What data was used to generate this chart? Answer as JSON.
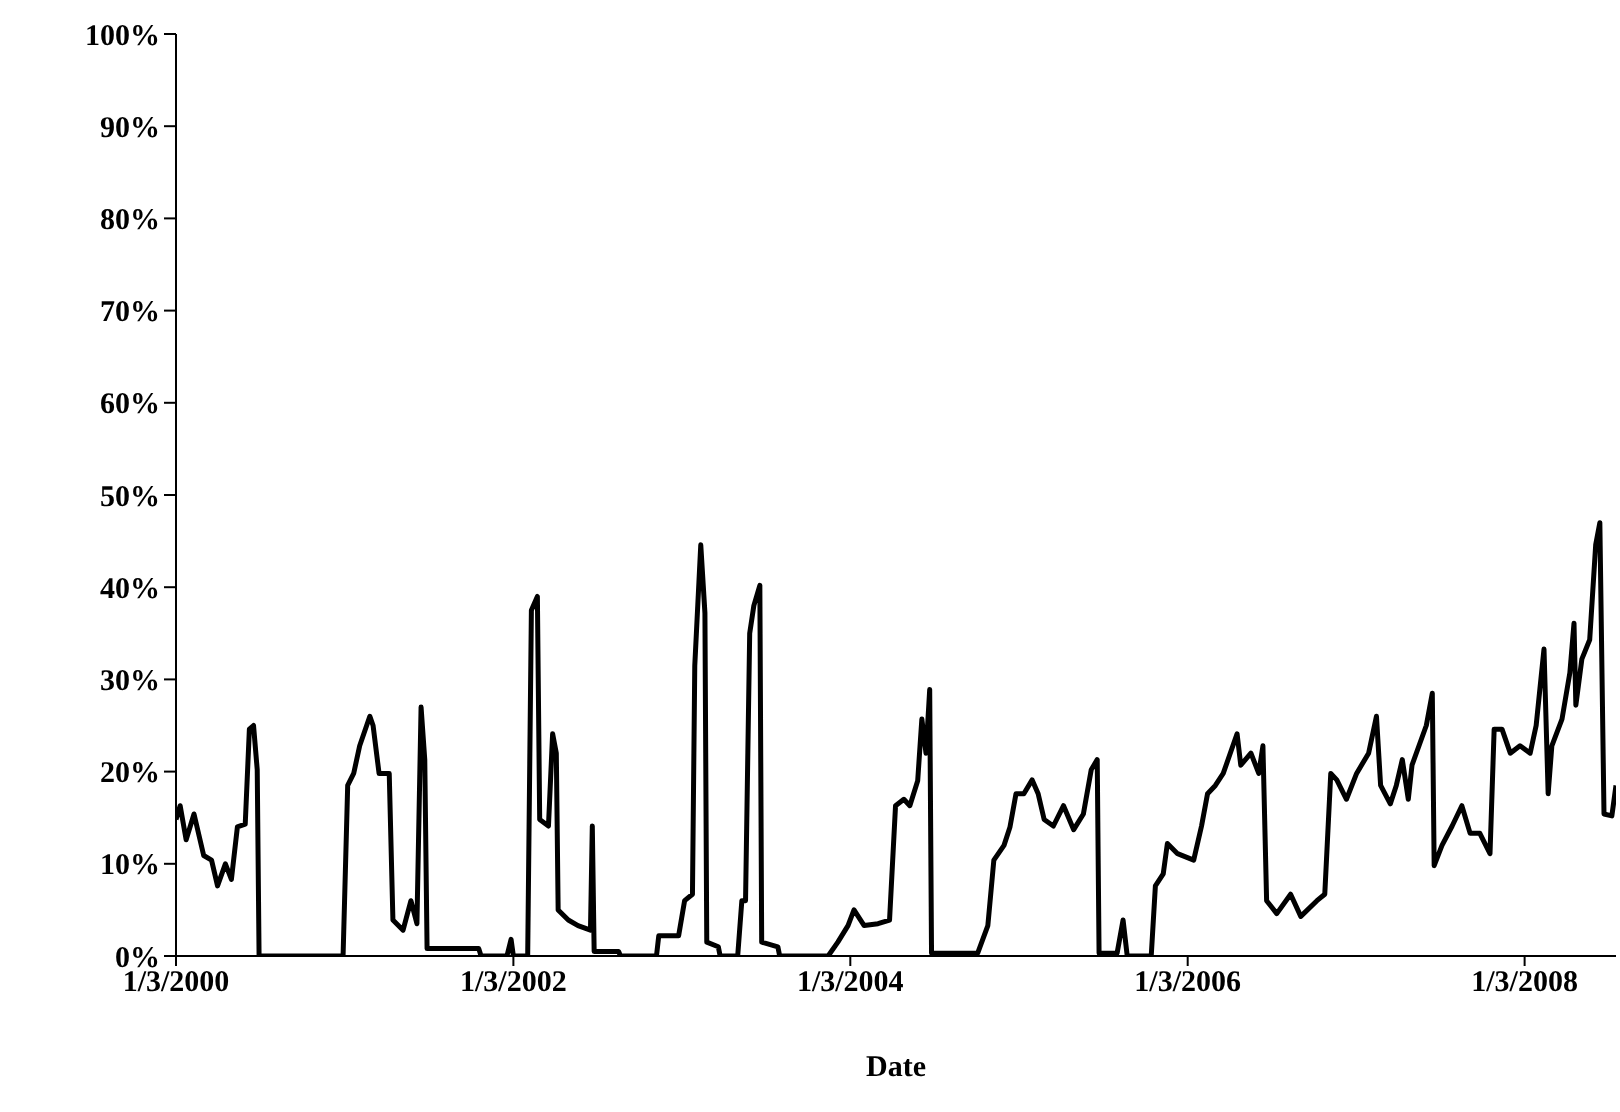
{
  "chart_data": {
    "type": "line",
    "xlabel": "Date",
    "x": [
      "2000-01-03",
      "2000-01-12",
      "2000-01-25",
      "2000-02-11",
      "2000-03-03",
      "2000-03-20",
      "2000-04-02",
      "2000-04-19",
      "2000-05-02",
      "2000-05-15",
      "2000-06-01",
      "2000-06-10",
      "2000-06-19",
      "2000-06-27",
      "2000-07-01",
      "2000-12-30",
      "2001-01-09",
      "2001-01-22",
      "2001-02-04",
      "2001-02-26",
      "2001-03-05",
      "2001-03-18",
      "2001-04-09",
      "2001-04-17",
      "2001-05-09",
      "2001-05-26",
      "2001-06-08",
      "2001-06-17",
      "2001-06-25",
      "2001-06-30",
      "2001-10-20",
      "2001-10-25",
      "2001-12-20",
      "2001-12-29",
      "2002-01-03",
      "2002-02-03",
      "2002-02-11",
      "2002-02-24",
      "2002-03-01",
      "2002-03-20",
      "2002-03-29",
      "2002-04-06",
      "2002-04-10",
      "2002-05-02",
      "2002-05-23",
      "2002-06-19",
      "2002-06-23",
      "2002-06-27",
      "2002-08-19",
      "2002-08-23",
      "2002-11-09",
      "2002-11-14",
      "2002-12-27",
      "2003-01-09",
      "2003-01-26",
      "2003-01-31",
      "2003-02-13",
      "2003-02-22",
      "2003-02-26",
      "2003-03-23",
      "2003-03-27",
      "2003-05-04",
      "2003-05-13",
      "2003-05-21",
      "2003-05-30",
      "2003-06-08",
      "2003-06-21",
      "2003-06-25",
      "2003-07-30",
      "2003-08-03",
      "2003-11-16",
      "2003-12-07",
      "2003-12-29",
      "2004-01-11",
      "2004-02-02",
      "2004-03-03",
      "2004-03-28",
      "2004-04-10",
      "2004-04-28",
      "2004-05-11",
      "2004-05-28",
      "2004-06-06",
      "2004-06-15",
      "2004-06-23",
      "2004-06-27",
      "2004-10-05",
      "2004-10-27",
      "2004-11-09",
      "2004-12-01",
      "2004-12-14",
      "2004-12-27",
      "2005-01-13",
      "2005-01-31",
      "2005-02-13",
      "2005-02-26",
      "2005-03-18",
      "2005-04-09",
      "2005-05-01",
      "2005-05-22",
      "2005-06-08",
      "2005-06-21",
      "2005-06-25",
      "2005-08-03",
      "2005-08-16",
      "2005-08-25",
      "2005-10-16",
      "2005-10-25",
      "2005-11-11",
      "2005-11-20",
      "2005-12-12",
      "2006-01-16",
      "2006-02-02",
      "2006-02-15",
      "2006-03-04",
      "2006-03-21",
      "2006-04-20",
      "2006-04-28",
      "2006-05-20",
      "2006-06-06",
      "2006-06-15",
      "2006-06-23",
      "2006-07-15",
      "2006-08-14",
      "2006-09-05",
      "2006-10-10",
      "2006-10-27",
      "2006-11-09",
      "2006-11-22",
      "2006-12-13",
      "2007-01-04",
      "2007-01-30",
      "2007-02-16",
      "2007-02-25",
      "2007-03-18",
      "2007-03-31",
      "2007-04-13",
      "2007-04-26",
      "2007-05-04",
      "2007-06-04",
      "2007-06-17",
      "2007-06-21",
      "2007-07-08",
      "2007-07-30",
      "2007-08-20",
      "2007-09-07",
      "2007-09-28",
      "2007-10-20",
      "2007-10-29",
      "2007-11-15",
      "2007-12-03",
      "2007-12-24",
      "2008-01-15",
      "2008-01-28",
      "2008-02-14",
      "2008-02-23",
      "2008-03-02",
      "2008-03-24",
      "2008-04-10",
      "2008-04-19",
      "2008-04-23",
      "2008-05-06",
      "2008-05-23",
      "2008-06-05",
      "2008-06-14",
      "2008-06-23",
      "2008-07-10",
      "2008-07-19"
    ],
    "series": [
      {
        "color": "#000000",
        "values": [
          14.8,
          16.3,
          12.6,
          15.4,
          10.9,
          10.4,
          7.6,
          10,
          8.3,
          14,
          14.3,
          24.6,
          25,
          20.2,
          0,
          0,
          18.5,
          19.8,
          22.8,
          26,
          25,
          19.8,
          19.8,
          3.9,
          2.8,
          6,
          3.5,
          27,
          21.3,
          0.8,
          0.8,
          0,
          0,
          1.8,
          0,
          0,
          37.5,
          39,
          14.8,
          14.1,
          24.1,
          22,
          5,
          3.9,
          3.3,
          2.8,
          14.1,
          0.5,
          0.5,
          0,
          0,
          2.2,
          2.2,
          6,
          6.7,
          31.5,
          44.6,
          37.2,
          1.5,
          1,
          0,
          0,
          6,
          6,
          35,
          38,
          40.2,
          1.5,
          1,
          0,
          0,
          1.5,
          3.3,
          5,
          3.3,
          3.5,
          3.9,
          16.3,
          17,
          16.3,
          19,
          25.7,
          22,
          28.9,
          0.3,
          0.3,
          3.3,
          10.4,
          12,
          14,
          17.6,
          17.6,
          19.1,
          17.6,
          14.8,
          14.1,
          16.3,
          13.7,
          15.4,
          20.2,
          21.3,
          0.3,
          0.3,
          3.9,
          0,
          0,
          7.6,
          8.9,
          12.2,
          11.1,
          10.4,
          14.1,
          17.6,
          18.5,
          19.8,
          24.1,
          20.7,
          22,
          19.8,
          22.8,
          6,
          4.6,
          6.7,
          4.3,
          6,
          6.7,
          19.8,
          19.1,
          17,
          19.8,
          22,
          26,
          18.5,
          16.5,
          18.5,
          21.3,
          17,
          20.7,
          25,
          28.5,
          9.8,
          12,
          14.1,
          16.3,
          13.3,
          13.3,
          11.1,
          24.6,
          24.6,
          22,
          22.8,
          22,
          25,
          33.3,
          17.6,
          22.8,
          25.7,
          30.7,
          36.1,
          27.2,
          32.2,
          34.3,
          44.6,
          47,
          15.4,
          15.2,
          18.5
        ]
      }
    ],
    "xlim": [
      "2000-01-03",
      "2008-07-19"
    ],
    "xticks": [
      {
        "value": "2000-01-03",
        "label": "1/3/2000"
      },
      {
        "value": "2002-01-03",
        "label": "1/3/2002"
      },
      {
        "value": "2004-01-03",
        "label": "1/3/2004"
      },
      {
        "value": "2006-01-03",
        "label": "1/3/2006"
      },
      {
        "value": "2008-01-03",
        "label": "1/3/2008"
      }
    ],
    "ylim": [
      0,
      100
    ],
    "yticks": [
      {
        "value": 0,
        "label": "0%"
      },
      {
        "value": 10,
        "label": "10%"
      },
      {
        "value": 20,
        "label": "20%"
      },
      {
        "value": 30,
        "label": "30%"
      },
      {
        "value": 40,
        "label": "40%"
      },
      {
        "value": 50,
        "label": "50%"
      },
      {
        "value": 60,
        "label": "60%"
      },
      {
        "value": 70,
        "label": "70%"
      },
      {
        "value": 80,
        "label": "80%"
      },
      {
        "value": 90,
        "label": "90%"
      },
      {
        "value": 100,
        "label": "100%"
      }
    ],
    "grid": false,
    "legend": false,
    "marker": "none",
    "line_style": "solid"
  }
}
